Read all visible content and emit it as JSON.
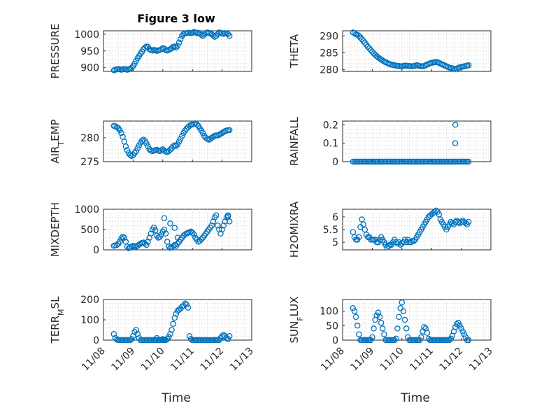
{
  "figure": {
    "title": "Figure 3 low",
    "marker_color": "#0072BD",
    "grid": "on",
    "x_ticks": [
      "11/08",
      "11/09",
      "11/10",
      "11/11",
      "11/12",
      "11/13"
    ],
    "x_label": "Time"
  },
  "chart_data": [
    {
      "type": "scatter",
      "ylabel": "PRESSURE",
      "ylim": [
        889,
        1010
      ],
      "yticks": [
        "900",
        "950",
        "1000"
      ],
      "x": [
        0.35,
        0.4,
        0.45,
        0.5,
        0.55,
        0.6,
        0.65,
        0.7,
        0.75,
        0.8,
        0.85,
        0.9,
        0.95,
        1.0,
        1.05,
        1.1,
        1.15,
        1.2,
        1.25,
        1.3,
        1.35,
        1.4,
        1.45,
        1.5,
        1.55,
        1.6,
        1.65,
        1.7,
        1.75,
        1.8,
        1.85,
        1.9,
        1.95,
        2.0,
        2.05,
        2.1,
        2.15,
        2.2,
        2.25,
        2.3,
        2.35,
        2.4,
        2.45,
        2.5,
        2.55,
        2.6,
        2.65,
        2.7,
        2.75,
        2.8,
        2.85,
        2.9,
        2.95,
        3.0,
        3.05,
        3.1,
        3.15,
        3.2,
        3.25,
        3.3,
        3.35,
        3.4,
        3.45,
        3.5,
        3.55,
        3.6,
        3.65,
        3.7,
        3.75,
        3.8,
        3.85,
        3.9,
        3.95,
        4.0,
        4.05,
        4.1,
        4.15,
        4.2,
        4.25
      ],
      "y": [
        892,
        894,
        895,
        896,
        895,
        894,
        895,
        896,
        895,
        894,
        895,
        897,
        900,
        905,
        912,
        920,
        928,
        935,
        942,
        948,
        955,
        960,
        963,
        962,
        955,
        952,
        951,
        953,
        952,
        950,
        951,
        953,
        955,
        958,
        957,
        952,
        951,
        953,
        955,
        958,
        962,
        963,
        960,
        965,
        975,
        985,
        995,
        1000,
        1002,
        1003,
        1004,
        1004,
        1003,
        1004,
        1006,
        1005,
        1003,
        1004,
        1001,
        998,
        995,
        999,
        1003,
        1005,
        1004,
        1002,
        1000,
        996,
        992,
        995,
        1000,
        1005,
        1004,
        1002,
        1001,
        1003,
        1002,
        1000,
        995
      ]
    },
    {
      "type": "scatter",
      "ylabel": "THETA",
      "ylim": [
        279.5,
        291.5
      ],
      "yticks": [
        "280",
        "285",
        "290"
      ],
      "x": [
        0.35,
        0.4,
        0.45,
        0.5,
        0.55,
        0.6,
        0.65,
        0.7,
        0.75,
        0.8,
        0.85,
        0.9,
        0.95,
        1.0,
        1.05,
        1.1,
        1.15,
        1.2,
        1.25,
        1.3,
        1.35,
        1.4,
        1.45,
        1.5,
        1.55,
        1.6,
        1.65,
        1.7,
        1.75,
        1.8,
        1.85,
        1.9,
        1.95,
        2.0,
        2.05,
        2.1,
        2.15,
        2.2,
        2.25,
        2.3,
        2.35,
        2.4,
        2.45,
        2.5,
        2.55,
        2.6,
        2.65,
        2.7,
        2.75,
        2.8,
        2.85,
        2.9,
        2.95,
        3.0,
        3.05,
        3.1,
        3.15,
        3.2,
        3.25,
        3.3,
        3.35,
        3.4,
        3.45,
        3.5,
        3.55,
        3.6,
        3.65,
        3.7,
        3.75,
        3.8,
        3.85,
        3.9,
        3.95,
        4.0,
        4.05,
        4.1,
        4.15,
        4.2,
        4.25
      ],
      "y": [
        291,
        290.8,
        290.5,
        290.3,
        290,
        289.5,
        289,
        288.5,
        288,
        287.4,
        286.8,
        286.3,
        285.8,
        285.3,
        284.8,
        284.4,
        284,
        283.6,
        283.3,
        283,
        282.7,
        282.4,
        282.2,
        282,
        281.8,
        281.6,
        281.5,
        281.4,
        281.3,
        281.2,
        281.1,
        281.1,
        281,
        281,
        281.1,
        281.2,
        281.2,
        281.1,
        281.1,
        281,
        281,
        281.1,
        281.2,
        281.3,
        281.2,
        281.1,
        281,
        281,
        281.1,
        281.3,
        281.5,
        281.7,
        281.9,
        282,
        282.1,
        282.2,
        282.3,
        282.2,
        282,
        281.8,
        281.6,
        281.4,
        281.2,
        281,
        280.8,
        280.6,
        280.5,
        280.4,
        280.3,
        280.2,
        280.3,
        280.5,
        280.7,
        280.8,
        280.9,
        281,
        281.1,
        281.2,
        281.3
      ]
    },
    {
      "type": "scatter",
      "ylabel": "AIR_TEMP",
      "ylim": [
        275,
        283.5
      ],
      "yticks": [
        "275",
        "280"
      ],
      "x": [
        0.35,
        0.4,
        0.45,
        0.5,
        0.55,
        0.6,
        0.65,
        0.7,
        0.75,
        0.8,
        0.85,
        0.9,
        0.95,
        1.0,
        1.05,
        1.1,
        1.15,
        1.2,
        1.25,
        1.3,
        1.35,
        1.4,
        1.45,
        1.5,
        1.55,
        1.6,
        1.65,
        1.7,
        1.75,
        1.8,
        1.85,
        1.9,
        1.95,
        2.0,
        2.05,
        2.1,
        2.15,
        2.2,
        2.25,
        2.3,
        2.35,
        2.4,
        2.45,
        2.5,
        2.55,
        2.6,
        2.65,
        2.7,
        2.75,
        2.8,
        2.85,
        2.9,
        2.95,
        3.0,
        3.05,
        3.1,
        3.15,
        3.2,
        3.25,
        3.3,
        3.35,
        3.4,
        3.45,
        3.5,
        3.55,
        3.6,
        3.65,
        3.7,
        3.75,
        3.8,
        3.85,
        3.9,
        3.95,
        4.0,
        4.05,
        4.1,
        4.15,
        4.2,
        4.25
      ],
      "y": [
        282.5,
        282.4,
        282.2,
        282,
        281.6,
        281,
        280.2,
        279.2,
        278.2,
        277.4,
        276.8,
        276.4,
        276.2,
        276.4,
        276.8,
        277.2,
        277.8,
        278.4,
        279,
        279.4,
        279.6,
        279.3,
        278.8,
        278.2,
        277.6,
        277.3,
        277.2,
        277.3,
        277.4,
        277.5,
        277.3,
        277.2,
        277.4,
        277.6,
        277.3,
        277.1,
        277,
        277.2,
        277.5,
        277.8,
        278.2,
        278.4,
        278.3,
        278.6,
        279.2,
        279.8,
        280.4,
        281,
        281.5,
        281.9,
        282.2,
        282.5,
        282.7,
        282.8,
        282.9,
        283,
        282.8,
        282.5,
        282,
        281.5,
        281,
        280.4,
        280,
        279.8,
        279.6,
        279.7,
        280,
        280.2,
        280.4,
        280.5,
        280.5,
        280.6,
        280.8,
        281,
        281.2,
        281.4,
        281.5,
        281.6,
        281.6
      ]
    },
    {
      "type": "scatter",
      "ylabel": "RAINFALL",
      "ylim": [
        0,
        0.22
      ],
      "yticks": [
        "0",
        "0.1",
        "0.2"
      ],
      "x": [
        0.35,
        0.4,
        0.45,
        0.5,
        0.55,
        0.6,
        0.65,
        0.7,
        0.75,
        0.8,
        0.85,
        0.9,
        0.95,
        1.0,
        1.05,
        1.1,
        1.15,
        1.2,
        1.25,
        1.3,
        1.35,
        1.4,
        1.45,
        1.5,
        1.55,
        1.6,
        1.65,
        1.7,
        1.75,
        1.8,
        1.85,
        1.9,
        1.95,
        2.0,
        2.05,
        2.1,
        2.15,
        2.2,
        2.25,
        2.3,
        2.35,
        2.4,
        2.45,
        2.5,
        2.55,
        2.6,
        2.65,
        2.7,
        2.75,
        2.8,
        2.85,
        2.9,
        2.95,
        3.0,
        3.05,
        3.1,
        3.15,
        3.2,
        3.25,
        3.3,
        3.35,
        3.4,
        3.45,
        3.5,
        3.55,
        3.6,
        3.65,
        3.7,
        3.75,
        3.8,
        3.85,
        3.9,
        3.95,
        4.0,
        4.05,
        4.1,
        4.15,
        4.2,
        4.25,
        3.8,
        3.8
      ],
      "y": [
        0,
        0,
        0,
        0,
        0,
        0,
        0,
        0,
        0,
        0,
        0,
        0,
        0,
        0,
        0,
        0,
        0,
        0,
        0,
        0,
        0,
        0,
        0,
        0,
        0,
        0,
        0,
        0,
        0,
        0,
        0,
        0,
        0,
        0,
        0,
        0,
        0,
        0,
        0,
        0,
        0,
        0,
        0,
        0,
        0,
        0,
        0,
        0,
        0,
        0,
        0,
        0,
        0,
        0,
        0,
        0,
        0,
        0,
        0,
        0,
        0,
        0,
        0,
        0,
        0,
        0,
        0,
        0,
        0,
        0,
        0,
        0,
        0,
        0,
        0,
        0,
        0,
        0,
        0,
        0.2,
        0.1
      ]
    },
    {
      "type": "scatter",
      "ylabel": "MIXDEPTH",
      "ylim": [
        0,
        1000
      ],
      "yticks": [
        "0",
        "500",
        "1000"
      ],
      "x": [
        0.35,
        0.4,
        0.45,
        0.5,
        0.55,
        0.6,
        0.65,
        0.7,
        0.75,
        0.8,
        0.85,
        0.9,
        0.95,
        1.0,
        1.05,
        1.1,
        1.15,
        1.2,
        1.25,
        1.3,
        1.35,
        1.4,
        1.45,
        1.5,
        1.55,
        1.6,
        1.65,
        1.7,
        1.75,
        1.8,
        1.85,
        1.9,
        1.95,
        2.0,
        2.05,
        2.1,
        2.15,
        2.2,
        2.25,
        2.3,
        2.35,
        2.4,
        2.45,
        2.5,
        2.55,
        2.6,
        2.65,
        2.7,
        2.75,
        2.8,
        2.85,
        2.9,
        2.95,
        3.0,
        3.05,
        3.1,
        3.15,
        3.2,
        3.25,
        3.3,
        3.35,
        3.4,
        3.45,
        3.5,
        3.55,
        3.6,
        3.65,
        3.7,
        3.75,
        3.8,
        3.85,
        3.9,
        3.95,
        4.0,
        4.05,
        4.1,
        4.15,
        4.2,
        4.25,
        2.05,
        2.25,
        2.4,
        2.5,
        4.2
      ],
      "y": [
        100,
        110,
        120,
        150,
        200,
        280,
        320,
        300,
        200,
        80,
        40,
        60,
        80,
        100,
        90,
        80,
        100,
        130,
        150,
        170,
        180,
        150,
        120,
        200,
        300,
        400,
        500,
        550,
        480,
        350,
        300,
        320,
        380,
        450,
        500,
        400,
        200,
        80,
        50,
        60,
        90,
        120,
        100,
        150,
        200,
        250,
        300,
        350,
        380,
        400,
        420,
        430,
        450,
        420,
        380,
        300,
        250,
        200,
        220,
        260,
        300,
        350,
        400,
        450,
        500,
        550,
        600,
        700,
        800,
        850,
        600,
        500,
        400,
        500,
        600,
        700,
        800,
        850,
        700,
        780,
        650,
        540,
        300,
        820
      ]
    },
    {
      "type": "scatter",
      "ylabel": "H2OMIXRA",
      "ylim": [
        4.7,
        6.3
      ],
      "yticks": [
        "5",
        "5.5",
        "6"
      ],
      "x": [
        0.35,
        0.4,
        0.45,
        0.5,
        0.55,
        0.6,
        0.65,
        0.7,
        0.75,
        0.8,
        0.85,
        0.9,
        0.95,
        1.0,
        1.05,
        1.1,
        1.15,
        1.2,
        1.25,
        1.3,
        1.35,
        1.4,
        1.45,
        1.5,
        1.55,
        1.6,
        1.65,
        1.7,
        1.75,
        1.8,
        1.85,
        1.9,
        1.95,
        2.0,
        2.05,
        2.1,
        2.15,
        2.2,
        2.25,
        2.3,
        2.35,
        2.4,
        2.45,
        2.5,
        2.55,
        2.6,
        2.65,
        2.7,
        2.75,
        2.8,
        2.85,
        2.9,
        2.95,
        3.0,
        3.05,
        3.1,
        3.15,
        3.2,
        3.25,
        3.3,
        3.35,
        3.4,
        3.45,
        3.5,
        3.55,
        3.6,
        3.65,
        3.7,
        3.75,
        3.8,
        3.85,
        3.9,
        3.95,
        4.0,
        4.05,
        4.1,
        4.15,
        4.2,
        4.25
      ],
      "y": [
        5.4,
        5.2,
        5.1,
        5.1,
        5.2,
        5.6,
        5.9,
        5.7,
        5.5,
        5.3,
        5.2,
        5.2,
        5.1,
        5.1,
        5.1,
        5.1,
        5.0,
        5.0,
        5.1,
        5.2,
        5.1,
        5.0,
        4.9,
        4.8,
        4.85,
        4.9,
        4.9,
        5.0,
        5.1,
        5.0,
        4.95,
        5.0,
        4.9,
        4.95,
        5.0,
        5.1,
        5.0,
        5.1,
        5.0,
        5.0,
        5.05,
        5.05,
        5.1,
        5.2,
        5.3,
        5.4,
        5.5,
        5.6,
        5.7,
        5.8,
        5.9,
        6.0,
        6.05,
        6.1,
        6.15,
        6.2,
        6.25,
        6.2,
        6.1,
        5.9,
        5.8,
        5.7,
        5.6,
        5.5,
        5.6,
        5.7,
        5.8,
        5.75,
        5.7,
        5.8,
        5.85,
        5.8,
        5.75,
        5.8,
        5.85,
        5.8,
        5.75,
        5.7,
        5.8
      ]
    },
    {
      "type": "scatter",
      "ylabel": "TERR_MSL",
      "ylim": [
        0,
        200
      ],
      "yticks": [
        "0",
        "100",
        "200"
      ],
      "x": [
        0.35,
        0.4,
        0.45,
        0.5,
        0.55,
        0.6,
        0.65,
        0.7,
        0.75,
        0.8,
        0.85,
        0.9,
        0.95,
        1.0,
        1.05,
        1.1,
        1.15,
        1.2,
        1.25,
        1.3,
        1.35,
        1.4,
        1.45,
        1.5,
        1.55,
        1.6,
        1.65,
        1.7,
        1.75,
        1.8,
        1.85,
        1.9,
        1.95,
        2.0,
        2.05,
        2.1,
        2.15,
        2.2,
        2.25,
        2.3,
        2.35,
        2.4,
        2.45,
        2.5,
        2.55,
        2.6,
        2.65,
        2.7,
        2.75,
        2.8,
        2.85,
        2.9,
        2.95,
        3.0,
        3.05,
        3.1,
        3.15,
        3.2,
        3.25,
        3.3,
        3.35,
        3.4,
        3.45,
        3.5,
        3.55,
        3.6,
        3.65,
        3.7,
        3.75,
        3.8,
        3.85,
        3.9,
        3.95,
        4.0,
        4.05,
        4.1,
        4.15,
        4.2,
        4.25,
        1.8,
        2.0,
        2.2
      ],
      "y": [
        30,
        10,
        2,
        0,
        0,
        0,
        0,
        0,
        0,
        0,
        0,
        0,
        5,
        20,
        40,
        50,
        30,
        10,
        0,
        0,
        0,
        0,
        0,
        0,
        0,
        0,
        0,
        0,
        0,
        0,
        0,
        0,
        0,
        0,
        0,
        0,
        5,
        15,
        30,
        50,
        80,
        110,
        130,
        145,
        150,
        155,
        165,
        170,
        180,
        175,
        160,
        20,
        5,
        0,
        0,
        0,
        0,
        0,
        0,
        0,
        0,
        0,
        0,
        0,
        0,
        0,
        0,
        0,
        0,
        0,
        0,
        0,
        10,
        20,
        25,
        20,
        10,
        5,
        20,
        10,
        5,
        15
      ]
    },
    {
      "type": "scatter",
      "ylabel": "SUN_FLUX",
      "ylim": [
        0,
        140
      ],
      "yticks": [
        "0",
        "50",
        "100"
      ],
      "x": [
        0.35,
        0.4,
        0.45,
        0.5,
        0.55,
        0.6,
        0.65,
        0.7,
        0.75,
        0.8,
        0.85,
        0.9,
        0.95,
        1.0,
        1.05,
        1.1,
        1.15,
        1.2,
        1.25,
        1.3,
        1.35,
        1.4,
        1.45,
        1.5,
        1.55,
        1.6,
        1.65,
        1.7,
        1.75,
        1.8,
        1.85,
        1.9,
        1.95,
        2.0,
        2.05,
        2.1,
        2.15,
        2.2,
        2.25,
        2.3,
        2.35,
        2.4,
        2.45,
        2.5,
        2.55,
        2.6,
        2.65,
        2.7,
        2.75,
        2.8,
        2.85,
        2.9,
        2.95,
        3.0,
        3.05,
        3.1,
        3.15,
        3.2,
        3.25,
        3.3,
        3.35,
        3.4,
        3.45,
        3.5,
        3.55,
        3.6,
        3.65,
        3.7,
        3.75,
        3.8,
        3.85,
        3.9,
        3.95,
        4.0,
        4.05,
        4.1,
        4.15,
        4.2,
        4.25
      ],
      "y": [
        110,
        100,
        80,
        50,
        20,
        0,
        0,
        0,
        0,
        0,
        0,
        0,
        0,
        10,
        40,
        70,
        85,
        95,
        80,
        60,
        40,
        20,
        0,
        0,
        0,
        0,
        0,
        0,
        0,
        5,
        40,
        80,
        110,
        130,
        100,
        70,
        40,
        10,
        0,
        0,
        0,
        0,
        0,
        0,
        0,
        0,
        10,
        30,
        45,
        40,
        25,
        5,
        0,
        0,
        0,
        0,
        0,
        0,
        0,
        0,
        0,
        0,
        0,
        0,
        0,
        0,
        5,
        15,
        30,
        45,
        55,
        60,
        50,
        40,
        30,
        20,
        10,
        0,
        0
      ]
    }
  ]
}
